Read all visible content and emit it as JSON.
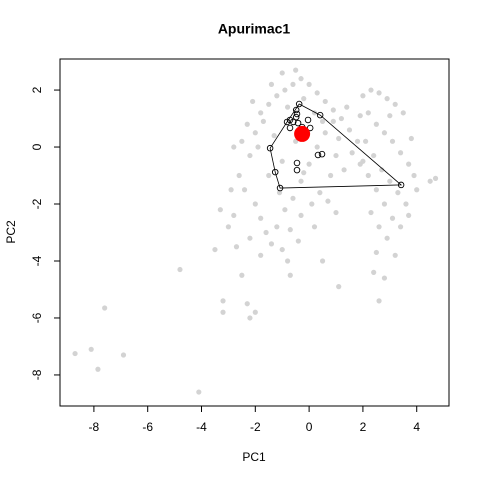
{
  "chart_data": {
    "type": "scatter",
    "title": "Apurimac1",
    "xlabel": "PC1",
    "ylabel": "PC2",
    "xlim": [
      -9.26,
      5.2
    ],
    "ylim": [
      -9.09,
      3.09
    ],
    "xticks": [
      -8,
      -6,
      -4,
      -2,
      0,
      2,
      4
    ],
    "yticks": [
      -8,
      -6,
      -4,
      -2,
      0,
      2
    ],
    "series": [
      {
        "color": "#d3d3d3",
        "marker": "filled",
        "x": [
          -1.8,
          -1.5,
          -1.2,
          -0.9,
          -0.6,
          -0.3,
          0,
          -1.0,
          -0.5,
          0.3,
          0.6,
          0.9,
          1.2,
          1.5,
          1.8,
          -2.0,
          -2.3,
          -2.5,
          -2.2,
          -2.6,
          -2.4,
          -2.0,
          -1.8,
          -1.6,
          -1.4,
          -1.2,
          -0.9,
          -0.6,
          -0.3,
          0,
          0.3,
          0.6,
          1.0,
          1.3,
          0.8,
          0.4,
          0.1,
          -0.3,
          -0.7,
          -1.0,
          -0.8,
          -1.8,
          -2.2,
          -2.8,
          -3.0,
          -2.7,
          -1.5,
          -1.0,
          -0.5,
          -1.3,
          -1.7,
          -0.8,
          0.2,
          0.5,
          1.1,
          1.6,
          1.9,
          0.7,
          1.0,
          0.2,
          -0.4,
          -2.9,
          -3.3,
          -1.9,
          -1.1,
          -0.2,
          0.9,
          1.4,
          -0.2,
          -1.4,
          -2.8,
          -2.1,
          2.0,
          2.3,
          2.6,
          2.9,
          3.2,
          3.5,
          2.2,
          2.5,
          2.8,
          3.1,
          3.4,
          3.7,
          2.1,
          2.4,
          2.7,
          3.0,
          3.3,
          3.6,
          2.2,
          2.5,
          2.8,
          3.1,
          3.4,
          3.7,
          2.3,
          2.6,
          2.9,
          3.2,
          2.5,
          2.8,
          3.9,
          4.0,
          3.8,
          2.0,
          1.9,
          3.0,
          -8.7,
          -8.1,
          -7.85,
          -6.9,
          -7.6,
          -4.8,
          -4.1,
          -3.2,
          -3.2,
          -2.2,
          -2.0,
          -3.5,
          4.5,
          4.7,
          2.4,
          2.6,
          1.1,
          -0.7,
          0.5,
          -2.5,
          -2.3
        ],
        "y": [
          1.2,
          1.5,
          1.8,
          2.0,
          2.2,
          2.4,
          2.2,
          2.6,
          2.7,
          1.9,
          1.6,
          1.3,
          1.0,
          0.6,
          0.2,
          0.5,
          0.8,
          0.2,
          -0.3,
          -1.0,
          -1.5,
          -2.0,
          -2.5,
          -3.0,
          -3.4,
          -2.8,
          -2.2,
          -1.8,
          -1.2,
          -0.6,
          0,
          0.5,
          -0.3,
          -0.8,
          -1.0,
          -1.6,
          -2.0,
          -2.4,
          -2.9,
          -3.6,
          -4.0,
          -3.8,
          -3.2,
          -2.4,
          -2.8,
          -3.5,
          -1.0,
          -0.5,
          0.2,
          0.4,
          0.9,
          1.4,
          1.2,
          0.9,
          0.3,
          -0.2,
          -0.6,
          -1.9,
          -2.3,
          -2.8,
          -3.3,
          -1.5,
          -2.2,
          0.0,
          -1.6,
          -0.9,
          0.9,
          1.4,
          1.7,
          2.2,
          0.0,
          1.6,
          1.8,
          2.0,
          1.9,
          1.7,
          1.5,
          1.2,
          1.2,
          0.8,
          0.5,
          0.2,
          -0.2,
          -0.6,
          0.2,
          -0.3,
          -0.8,
          -1.2,
          -1.6,
          -2.0,
          -1.0,
          -1.5,
          -2.0,
          -2.5,
          -2.8,
          -2.4,
          -2.3,
          -2.8,
          -3.2,
          -3.8,
          -3.7,
          -4.6,
          -1.0,
          -1.5,
          0.3,
          -0.5,
          1.1,
          1.1,
          -7.25,
          -7.1,
          -7.8,
          -7.3,
          -5.65,
          -4.3,
          -8.6,
          -5.8,
          -5.4,
          -6.0,
          -5.8,
          -3.6,
          -1.2,
          -1.1,
          -4.4,
          -5.4,
          -4.9,
          -4.5,
          -4.0,
          -4.5,
          -5.5
        ]
      },
      {
        "color": "#000000",
        "marker": "open",
        "x": [
          -0.37,
          -0.48,
          -0.45,
          -0.48,
          -0.71,
          -0.82,
          -0.59,
          -0.41,
          -0.71,
          -0.26,
          0.04,
          0.41,
          -0.04,
          -1.45,
          -0.45,
          -0.45,
          0.33,
          0.48,
          -1.26,
          -1.08,
          3.42
        ],
        "y": [
          1.51,
          1.3,
          1.16,
          1.05,
          0.95,
          0.88,
          0.88,
          0.84,
          0.67,
          0.7,
          0.67,
          1.12,
          0.95,
          -0.04,
          -0.56,
          -0.81,
          -0.28,
          -0.25,
          -0.88,
          -1.44,
          -1.33
        ]
      },
      {
        "color": "#000000",
        "marker": "polygon",
        "x": [
          -0.37,
          0.41,
          3.42,
          -1.08,
          -1.26,
          -1.45,
          -0.82
        ],
        "y": [
          1.51,
          1.12,
          -1.33,
          -1.44,
          -0.88,
          -0.04,
          0.88
        ]
      },
      {
        "color": "#ff0000",
        "marker": "large",
        "x": [
          -0.26
        ],
        "y": [
          0.46
        ]
      }
    ]
  }
}
